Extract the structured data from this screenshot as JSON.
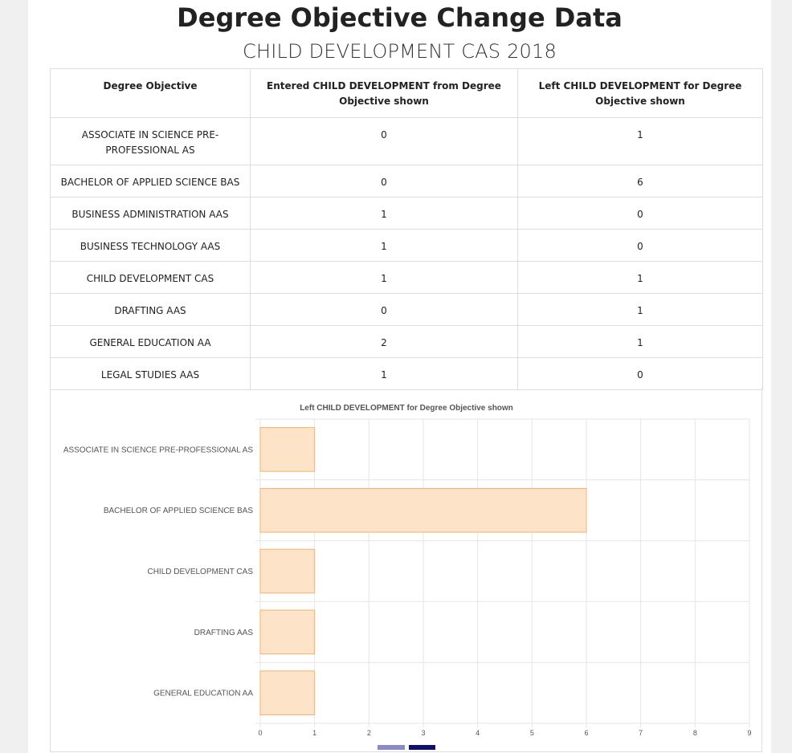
{
  "header": {
    "title": "Degree Objective Change Data",
    "subtitle": "CHILD DEVELOPMENT CAS 2018"
  },
  "table": {
    "columns": [
      "Degree Objective",
      "Entered CHILD DEVELOPMENT from Degree Objective shown",
      "Left CHILD DEVELOPMENT for Degree Objective shown"
    ],
    "rows": [
      {
        "objective": "ASSOCIATE IN SCIENCE PRE-PROFESSIONAL AS",
        "entered": "0",
        "left": "1"
      },
      {
        "objective": "BACHELOR OF APPLIED SCIENCE BAS",
        "entered": "0",
        "left": "6"
      },
      {
        "objective": "BUSINESS ADMINISTRATION AAS",
        "entered": "1",
        "left": "0"
      },
      {
        "objective": "BUSINESS TECHNOLOGY AAS",
        "entered": "1",
        "left": "0"
      },
      {
        "objective": "CHILD DEVELOPMENT CAS",
        "entered": "1",
        "left": "1"
      },
      {
        "objective": "DRAFTING AAS",
        "entered": "0",
        "left": "1"
      },
      {
        "objective": "GENERAL EDUCATION AA",
        "entered": "2",
        "left": "1"
      },
      {
        "objective": "LEGAL STUDIES AAS",
        "entered": "1",
        "left": "0"
      }
    ]
  },
  "chart_data": {
    "type": "bar",
    "orientation": "horizontal",
    "title": "Left CHILD DEVELOPMENT for Degree Objective shown",
    "categories": [
      "ASSOCIATE IN SCIENCE PRE-PROFESSIONAL AS",
      "BACHELOR OF APPLIED SCIENCE BAS",
      "CHILD DEVELOPMENT CAS",
      "DRAFTING AAS",
      "GENERAL EDUCATION AA"
    ],
    "values": [
      1,
      6,
      1,
      1,
      1
    ],
    "xlim": [
      0,
      9
    ],
    "x_ticks": [
      "0",
      "1",
      "2",
      "3",
      "4",
      "5",
      "6",
      "7",
      "8",
      "9"
    ],
    "grid": true,
    "bar_fill": "#fde3c8",
    "bar_stroke": "#f5b06e",
    "legend_colors": [
      "#8a8ac6",
      "#10106e"
    ]
  }
}
